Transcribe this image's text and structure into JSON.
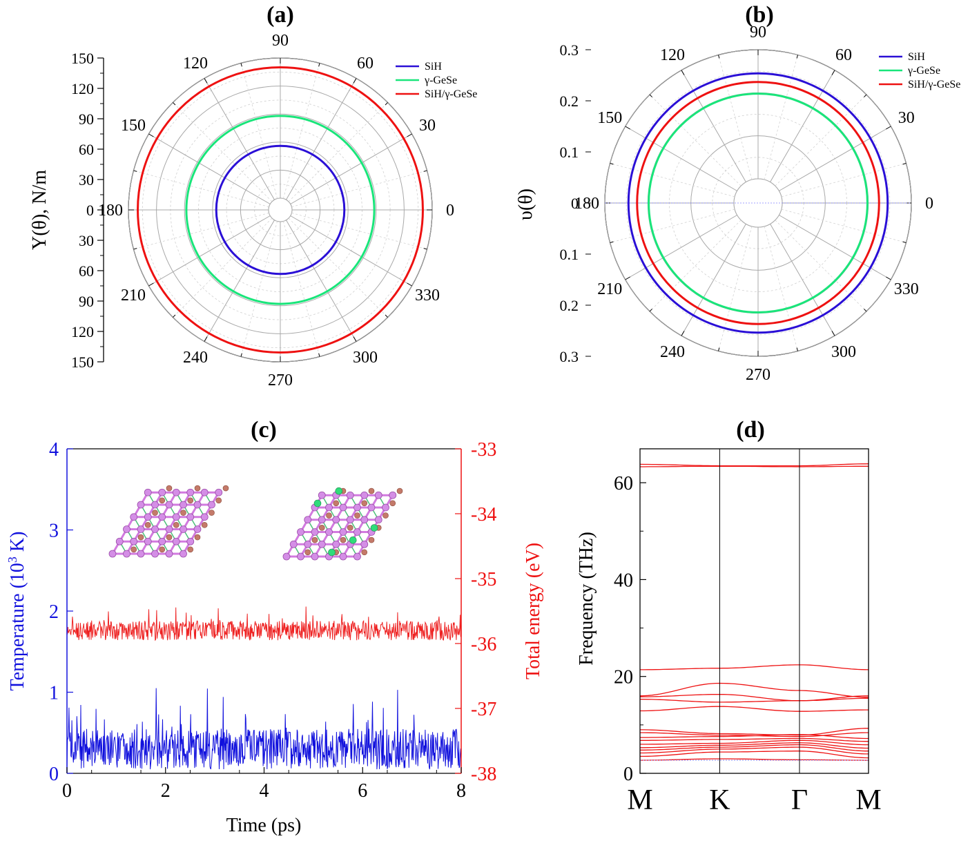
{
  "chart_data": [
    {
      "panel": "a",
      "type": "polar",
      "title": "(a)",
      "ylabel": "Y(θ), N/m",
      "radial_ticks": [
        "150",
        "120",
        "90",
        "60",
        "30",
        "0",
        "30",
        "60",
        "90",
        "120",
        "150"
      ],
      "angle_labels": [
        "0",
        "30",
        "60",
        "90",
        "120",
        "150",
        "180",
        "210",
        "240",
        "270",
        "300",
        "330"
      ],
      "rlim": [
        0,
        150
      ],
      "legend_position": "top-right",
      "series": [
        {
          "name": "SiH",
          "color": "#2a0fd6",
          "r": 56
        },
        {
          "name": "γ-GeSe",
          "color": "#19e57a",
          "r": 88
        },
        {
          "name": "SiH/γ-GeSe",
          "color": "#ee1111",
          "r": 140
        }
      ]
    },
    {
      "panel": "b",
      "type": "polar",
      "title": "(b)",
      "ylabel": "υ(θ)",
      "radial_ticks": [
        "0.3",
        "0.2",
        "0.1",
        "0",
        "0.1",
        "0.2",
        "0.3"
      ],
      "angle_labels": [
        "0",
        "30",
        "60",
        "90",
        "120",
        "150",
        "180",
        "210",
        "240",
        "270",
        "300",
        "330"
      ],
      "rlim": [
        0,
        0.3
      ],
      "legend_position": "top-right",
      "series": [
        {
          "name": "SiH",
          "color": "#2a0fd6",
          "r": 0.245
        },
        {
          "name": "γ-GeSe",
          "color": "#19e57a",
          "r": 0.198
        },
        {
          "name": "SiH/γ-GeSe",
          "color": "#ee1111",
          "r": 0.225
        }
      ]
    },
    {
      "panel": "c",
      "type": "line",
      "title": "(c)",
      "xlabel": "Time (ps)",
      "ylabel_left": "Temperature (10³ K)",
      "ylabel_right": "Total energy (eV)",
      "xlim": [
        0,
        8
      ],
      "ylim_left": [
        0,
        4
      ],
      "ylim_right": [
        -38,
        -33
      ],
      "x_ticks": [
        "0",
        "2",
        "4",
        "6",
        "8"
      ],
      "y_ticks_left": [
        "0",
        "1",
        "2",
        "3",
        "4"
      ],
      "y_ticks_right": [
        "-38",
        "-37",
        "-36",
        "-35",
        "-34",
        "-33"
      ],
      "series": [
        {
          "name": "Temperature",
          "color": "#1010dd",
          "axis": "left",
          "mean": 0.3,
          "min": 0.03,
          "max": 1.05
        },
        {
          "name": "Total energy",
          "color": "#ee2222",
          "axis": "right",
          "mean": -35.8,
          "min": -36.0,
          "max": -35.4
        }
      ]
    },
    {
      "panel": "d",
      "type": "line",
      "title": "(d)",
      "ylabel": "Frequency (THz)",
      "ylim": [
        0,
        67
      ],
      "y_ticks": [
        "0",
        "20",
        "40",
        "60"
      ],
      "kpath_labels": [
        "M",
        "K",
        "Γ",
        "M"
      ],
      "kpath_positions": [
        0,
        0.577,
        1.155,
        1.655
      ],
      "bands": [
        [
          2.7,
          3.0,
          2.8,
          2.7
        ],
        [
          3.5,
          4.4,
          4.6,
          3.2
        ],
        [
          4.2,
          5.0,
          5.4,
          4.0
        ],
        [
          4.8,
          5.4,
          5.9,
          4.6
        ],
        [
          5.3,
          5.8,
          6.3,
          5.2
        ],
        [
          6.0,
          6.2,
          6.8,
          5.9
        ],
        [
          6.8,
          7.0,
          7.2,
          6.6
        ],
        [
          7.4,
          7.6,
          8.0,
          7.2
        ],
        [
          8.4,
          7.9,
          7.6,
          8.4
        ],
        [
          9.0,
          8.2,
          7.9,
          9.3
        ],
        [
          12.9,
          13.8,
          12.8,
          13.1
        ],
        [
          15.3,
          14.7,
          15.0,
          15.5
        ],
        [
          15.8,
          16.3,
          15.0,
          16.0
        ],
        [
          16.0,
          18.6,
          17.1,
          15.7
        ],
        [
          21.4,
          21.7,
          22.4,
          21.4
        ],
        [
          63.3,
          63.4,
          63.3,
          63.4
        ],
        [
          63.8,
          63.5,
          63.5,
          63.9
        ]
      ]
    }
  ]
}
